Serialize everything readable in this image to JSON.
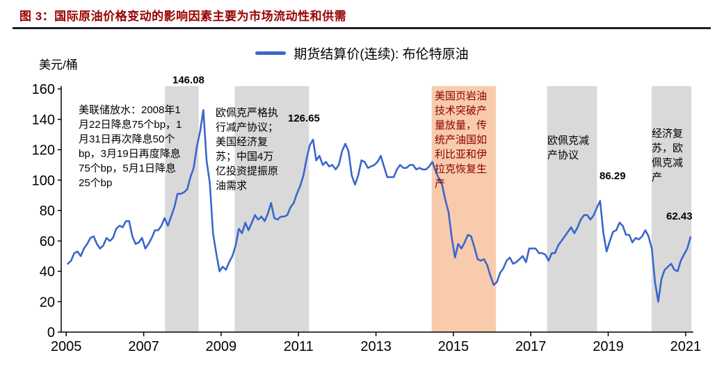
{
  "header": {
    "title": "图 3：国际原油价格变动的影响因素主要为市场流动性和供需"
  },
  "legend": {
    "label": "期货结算价(连续): 布伦特原油",
    "line_color": "#3a66cc"
  },
  "axis_unit": "美元/桶",
  "chart_data": {
    "type": "line",
    "title": "图 3：国际原油价格变动的影响因素主要为市场流动性和供需",
    "xlabel": "",
    "ylabel": "美元/桶",
    "legend_position": "top-center",
    "grid": false,
    "xlim": [
      2004.87,
      2021.2
    ],
    "ylim": [
      0,
      160
    ],
    "x_ticks": [
      2005,
      2007,
      2009,
      2011,
      2013,
      2015,
      2017,
      2019,
      2021
    ],
    "y_ticks": [
      0,
      20,
      40,
      60,
      80,
      100,
      120,
      140,
      160
    ],
    "series": [
      {
        "name": "期货结算价(连续): 布伦特原油",
        "color": "#3a66cc",
        "start_year": 2005,
        "interval": "monthly",
        "values": [
          45,
          47,
          52,
          53,
          50,
          55,
          58,
          62,
          63,
          58,
          55,
          57,
          62,
          60,
          62,
          68,
          70,
          69,
          73,
          73,
          63,
          58,
          59,
          62,
          55,
          58,
          62,
          67,
          67,
          70,
          75,
          70,
          76,
          82,
          91,
          91,
          92,
          94,
          102,
          108,
          122,
          132,
          146.08,
          113,
          98,
          65,
          52,
          40,
          43,
          41,
          46,
          50,
          57,
          68,
          65,
          72,
          67,
          72,
          77,
          74,
          76,
          73,
          78,
          85,
          75,
          74,
          76,
          76,
          77,
          82,
          85,
          91,
          96,
          103,
          114,
          123,
          126.65,
          113,
          116,
          110,
          112,
          109,
          110,
          107,
          110,
          119,
          124,
          119,
          103,
          97,
          103,
          113,
          112,
          108,
          109,
          110,
          112,
          116,
          109,
          102,
          102,
          102,
          107,
          110,
          108,
          108,
          110,
          110,
          107,
          108,
          107,
          107,
          109,
          112,
          106,
          101,
          97,
          87,
          79,
          62,
          49,
          58,
          55,
          59,
          64,
          63,
          56,
          48,
          47,
          48,
          44,
          37,
          31,
          33,
          39,
          42,
          47,
          49,
          45,
          46,
          48,
          50,
          46,
          55,
          55,
          55,
          52,
          52,
          51,
          47,
          52,
          52,
          57,
          60,
          63,
          66,
          69,
          65,
          69,
          74,
          77,
          77,
          74,
          77,
          82,
          86.29,
          65,
          53,
          60,
          66,
          67,
          72,
          70,
          64,
          64,
          59,
          62,
          61,
          63,
          67,
          63,
          55,
          33,
          20,
          35,
          41,
          43,
          45,
          41,
          40,
          47,
          51,
          55,
          62.43
        ]
      }
    ],
    "bands": [
      {
        "x0": 2007.55,
        "x1": 2008.42,
        "color": "#d9d9d9"
      },
      {
        "x0": 2009.35,
        "x1": 2011.27,
        "color": "#d9d9d9"
      },
      {
        "x0": 2014.44,
        "x1": 2016.1,
        "color": "#f8cbad"
      },
      {
        "x0": 2017.42,
        "x1": 2018.71,
        "color": "#d9d9d9"
      },
      {
        "x0": 2020.12,
        "x1": 2021.15,
        "color": "#d9d9d9"
      }
    ],
    "annotations": [
      {
        "label": "146.08",
        "x": 2008.54,
        "y": 146.08
      },
      {
        "label": "126.65",
        "x": 2011.37,
        "y": 126.65
      },
      {
        "label": "86.29",
        "x": 2018.79,
        "y": 86.29
      },
      {
        "label": "62.43",
        "x": 2021.12,
        "y": 62.43
      }
    ],
    "notes": [
      {
        "id": "fed-easing",
        "text": "美联储放水：2008年1月22日降息75个bp，1月31日再次降息50个bp，3月19日再度降息75个bp，5月1日降息25个bp",
        "color": "#000000"
      },
      {
        "id": "opec-cuts-2009",
        "text": "欧佩克严格执行减产协议；美国经济复苏；中国4万亿投资提振原油需求",
        "color": "#000000"
      },
      {
        "id": "us-shale-breakout",
        "text": "美国页岩油技术突破产量放量，传统产油国如利比亚和伊拉克恢复生产",
        "color": "#8b0000"
      },
      {
        "id": "opec-cut-deal",
        "text": "欧佩克减产协议",
        "color": "#000000"
      },
      {
        "id": "economic-recovery",
        "text": "经济复苏，欧佩克减产",
        "color": "#000000"
      }
    ]
  }
}
